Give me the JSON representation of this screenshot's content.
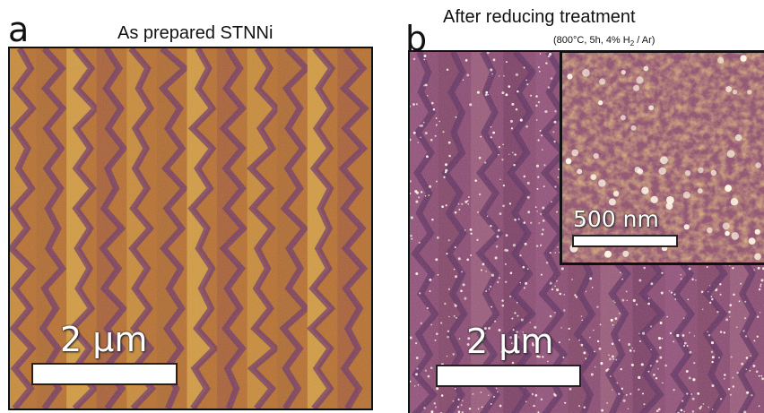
{
  "panel_a": {
    "letter": "a",
    "title": "As prepared STNNi",
    "scale_label": "2 µm"
  },
  "panel_b": {
    "letter": "b",
    "title": "After reducing treatment",
    "condition_prefix": "(800°C, 5h, 4% H",
    "condition_sub": "2",
    "condition_suffix": " / Ar)",
    "scale_label": "2 µm",
    "inset": {
      "scale_label": "500 nm"
    }
  },
  "colors": {
    "terrace_light": "#c87f2c",
    "terrace_bright": "#d9a040",
    "step_dark": "#7a3b6a",
    "background_purple": "#8b4a72",
    "particle": "#ffffff"
  }
}
